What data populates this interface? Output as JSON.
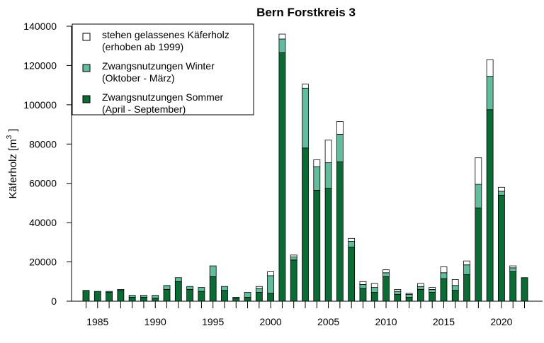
{
  "chart_data": {
    "type": "bar",
    "stacked": true,
    "title": "Bern Forstkreis 3",
    "ylabel_main": "Käferholz [m",
    "ylabel_sup": "3",
    "ylabel_close": "]",
    "ylim": [
      0,
      140000
    ],
    "y_ticks": [
      0,
      20000,
      40000,
      60000,
      80000,
      100000,
      120000,
      140000
    ],
    "x_range": [
      1984,
      2022
    ],
    "x_tick_labels": [
      1985,
      1990,
      1995,
      2000,
      2005,
      2010,
      2015,
      2020
    ],
    "grid": false,
    "legend_position": "top-left",
    "x": [
      1984,
      1985,
      1986,
      1987,
      1988,
      1989,
      1990,
      1991,
      1992,
      1993,
      1994,
      1995,
      1996,
      1997,
      1998,
      1999,
      2000,
      2001,
      2002,
      2003,
      2004,
      2005,
      2006,
      2007,
      2008,
      2009,
      2010,
      2011,
      2012,
      2013,
      2014,
      2015,
      2016,
      2017,
      2018,
      2019,
      2020,
      2021,
      2022
    ],
    "series": [
      {
        "name": "Zwangsnutzungen Sommer",
        "name_line2": "(April - September)",
        "color": "#0a6b35",
        "values": [
          5500,
          5000,
          4500,
          5500,
          2000,
          2000,
          1500,
          6000,
          10000,
          6000,
          5000,
          12500,
          5500,
          1500,
          2000,
          4500,
          4000,
          126500,
          21000,
          78000,
          56500,
          57500,
          71000,
          27500,
          6500,
          4500,
          12500,
          3500,
          2000,
          6000,
          4500,
          11500,
          5500,
          13500,
          47500,
          97500,
          54000,
          15000,
          12000
        ]
      },
      {
        "name": "Zwangsnutzungen Winter",
        "name_line2": "(Oktober - März)",
        "color": "#63bd9c",
        "values": [
          0,
          0,
          500,
          500,
          1000,
          1000,
          1500,
          2000,
          2000,
          1500,
          2000,
          5500,
          2000,
          500,
          2500,
          2000,
          9000,
          7000,
          1500,
          30500,
          12000,
          13000,
          14000,
          3000,
          2000,
          2500,
          2000,
          1500,
          1500,
          1500,
          1500,
          3000,
          2500,
          5000,
          12000,
          17000,
          2000,
          2000,
          0
        ]
      },
      {
        "name": "stehen gelassenes Käferholz",
        "name_line2": "(erhoben ab 1999)",
        "color": "#ffffff",
        "values": [
          0,
          0,
          0,
          0,
          0,
          0,
          0,
          0,
          0,
          0,
          0,
          0,
          0,
          0,
          0,
          1000,
          2000,
          2500,
          1000,
          2000,
          3500,
          11500,
          6500,
          1500,
          1500,
          2000,
          1500,
          1000,
          500,
          1500,
          1000,
          3000,
          3000,
          2000,
          13500,
          8500,
          2000,
          1000,
          0
        ]
      }
    ]
  }
}
